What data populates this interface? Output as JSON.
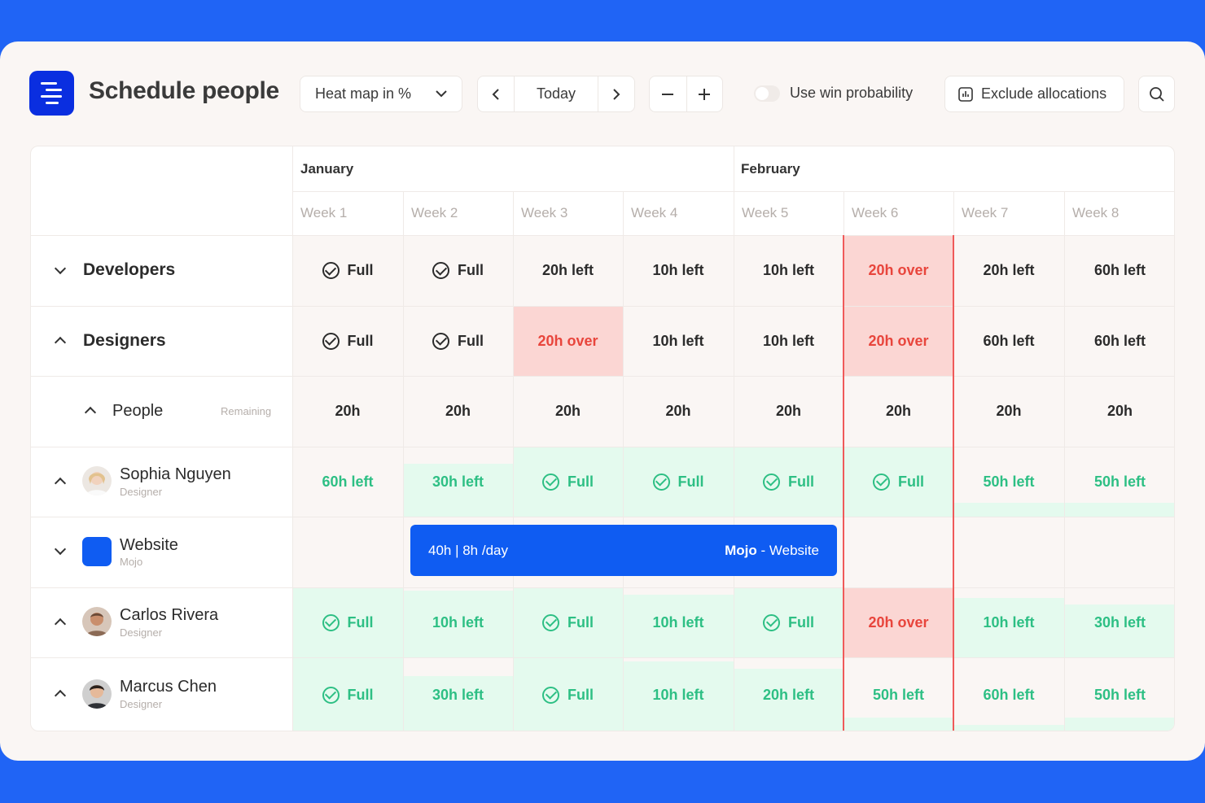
{
  "app": {
    "title": "Schedule people"
  },
  "toolbar": {
    "view_select": "Heat map in %",
    "today_label": "Today",
    "win_probability_label": "Use win probability",
    "exclude_label": "Exclude allocations"
  },
  "months": [
    "January",
    "February"
  ],
  "weeks": [
    "Week 1",
    "Week 2",
    "Week 3",
    "Week 4",
    "Week 5",
    "Week 6",
    "Week 7",
    "Week 8"
  ],
  "groups": {
    "developers": {
      "label": "Developers",
      "cells": [
        "Full",
        "Full",
        "20h left",
        "10h left",
        "10h left",
        "20h over",
        "20h left",
        "60h left"
      ]
    },
    "designers": {
      "label": "Designers",
      "cells": [
        "Full",
        "Full",
        "20h over",
        "10h left",
        "10h left",
        "20h over",
        "60h left",
        "60h left"
      ]
    },
    "people": {
      "label": "People",
      "remaining_label": "Remaining",
      "cells": [
        "20h",
        "20h",
        "20h",
        "20h",
        "20h",
        "20h",
        "20h",
        "20h"
      ]
    }
  },
  "people": [
    {
      "name": "Sophia Nguyen",
      "role": "Designer",
      "cells": [
        "60h left",
        "30h left",
        "Full",
        "Full",
        "Full",
        "Full",
        "50h left",
        "50h left"
      ],
      "fills": [
        0,
        0.75,
        1,
        1,
        1,
        1,
        0.2,
        0.2
      ]
    },
    {
      "name": "Carlos Rivera",
      "role": "Designer",
      "cells": [
        "Full",
        "10h left",
        "Full",
        "10h left",
        "Full",
        "20h over",
        "10h left",
        "30h left"
      ],
      "fills": [
        1,
        0.95,
        1,
        0.9,
        1,
        1,
        0.85,
        0.75
      ]
    },
    {
      "name": "Marcus Chen",
      "role": "Designer",
      "cells": [
        "Full",
        "30h left",
        "Full",
        "10h left",
        "20h left",
        "50h left",
        "60h left",
        "50h left"
      ],
      "fills": [
        1,
        0.75,
        1,
        0.95,
        0.85,
        0.2,
        0.1,
        0.2
      ]
    }
  ],
  "project": {
    "name": "Website",
    "client": "Mojo",
    "allocation_label": "40h | 8h /day",
    "bar_client": "Mojo",
    "bar_separator": " - Website"
  },
  "colors": {
    "background": "#2064f5",
    "brand": "#0a2ee0",
    "allocation_bar": "#0f5cf2",
    "full_text": "#2dbf84",
    "over_text": "#e8453c",
    "over_fill": "#fbd6d3",
    "green_fill": "#e4faee",
    "today_line": "#ef5a5a"
  },
  "icons": [
    "menu-logo-icon",
    "chevron-down-icon",
    "chevron-left-icon",
    "chevron-right-icon",
    "minus-icon",
    "plus-icon",
    "chart-icon",
    "search-icon",
    "check-circle-icon"
  ]
}
